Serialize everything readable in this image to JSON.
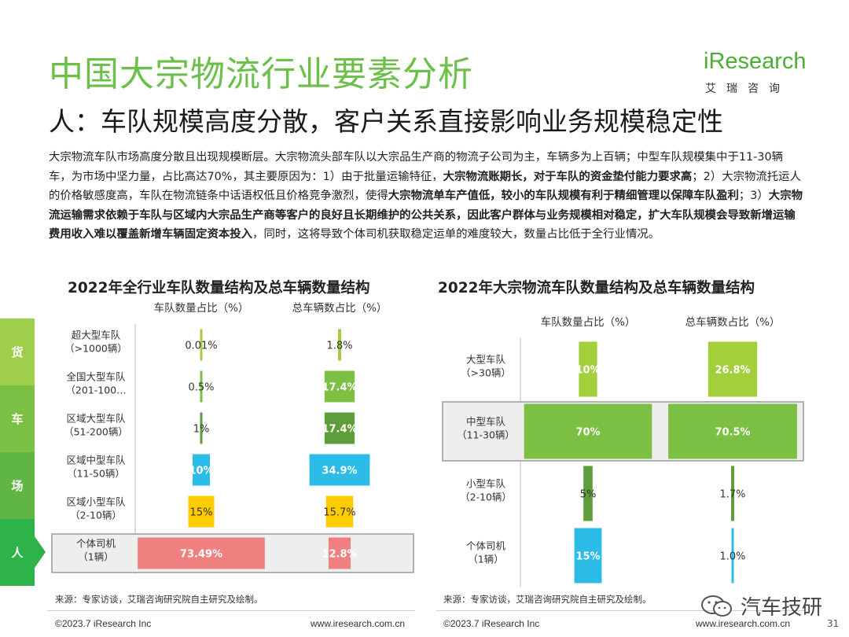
{
  "header": {
    "title": "中国大宗物流行业要素分析",
    "subtitle": "人：车队规模高度分散，客户关系直接影响业务规模稳定性",
    "logo_text": "iResearch",
    "logo_cn": "艾瑞咨询"
  },
  "intro": {
    "segments": [
      {
        "text": "大宗物流车队市场高度分散且出现规模断层。大宗物流头部车队以大宗品生产商的物流子公司为主，车辆多为上百辆；中型车队规模集中于11-30辆车，为市场中坚力量，占比高达70%，其主要原因为：1）由于批量运输特征，",
        "bold": false
      },
      {
        "text": "大宗物流账期长，对于车队的资金垫付能力要求高",
        "bold": true
      },
      {
        "text": "；2）大宗物流托运人的价格敏感度高，车队在物流链条中话语权低且价格竞争激烈，使得",
        "bold": false
      },
      {
        "text": "大宗物流单车产值低，较小的车队规模有利于精细管理以保障车队盈利",
        "bold": true
      },
      {
        "text": "；3）",
        "bold": false
      },
      {
        "text": "大宗物流运输需求依赖于车队与区域内大宗品生产商等客户的良好且长期维护的公共关系，因此客户群体与业务规模相对稳定，扩大车队规模会导致新增运输费用收入难以覆盖新增车辆固定资本投入",
        "bold": true
      },
      {
        "text": "，同时，这将导致个体司机获取稳定运单的难度较大，数量占比低于全行业情况。",
        "bold": false
      }
    ]
  },
  "sidebar": {
    "tabs": [
      {
        "label": "货",
        "color": "#9fcf4a"
      },
      {
        "label": "车",
        "color": "#7cc043"
      },
      {
        "label": "场",
        "color": "#5fb644"
      },
      {
        "label": "人",
        "color": "#2db34a"
      }
    ]
  },
  "chart_data": [
    {
      "type": "bar",
      "title": "2022年全行业车队数量结构及总车辆数量结构",
      "orientation": "horizontal-funnel",
      "categories": [
        "超大型车队\n（>1000辆）",
        "全国大型车队\n（201-100…",
        "区域大型车队\n（51-200辆）",
        "区域中型车队\n（11-50辆）",
        "区域小型车队\n（2-10辆）",
        "个体司机\n（1辆）"
      ],
      "series": [
        {
          "name": "车队数量占比（%）",
          "values": [
            0.01,
            0.5,
            1,
            10,
            15,
            73.49
          ],
          "labels": [
            "0.01%",
            "0.5%",
            "1%",
            "10%",
            "15%",
            "73.49%"
          ]
        },
        {
          "name": "总车辆数占比（%）",
          "values": [
            1.8,
            17.4,
            17.4,
            34.9,
            15.7,
            12.8
          ],
          "labels": [
            "1.8%",
            "17.4%",
            "17.4%",
            "34.9%",
            "15.7%",
            "12.8%"
          ]
        }
      ],
      "colors": [
        "#a3cf3a",
        "#7cc043",
        "#5e9e3a",
        "#2bbce8",
        "#ffcc00",
        "#f08080"
      ],
      "highlight_category": "个体司机\n（1辆）",
      "source": "来源：专家访谈，艾瑞咨询研究院自主研究及绘制。"
    },
    {
      "type": "bar",
      "title": "2022年大宗物流车队数量结构及总车辆数量结构",
      "orientation": "horizontal-funnel",
      "categories": [
        "大型车队\n（>30辆）",
        "中型车队\n（11-30辆）",
        "小型车队\n（2-10辆）",
        "个体司机\n（1辆）"
      ],
      "series": [
        {
          "name": "车队数量占比（%）",
          "values": [
            10,
            70,
            5,
            15
          ],
          "labels": [
            "10%",
            "70%",
            "5%",
            "15%"
          ]
        },
        {
          "name": "总车辆数占比（%）",
          "values": [
            26.8,
            70.5,
            1.7,
            1.0
          ],
          "labels": [
            "26.8%",
            "70.5%",
            "1.7%",
            "1.0%"
          ]
        }
      ],
      "colors": [
        "#a3cf3a",
        "#7cc043",
        "#5e9e3a",
        "#2bbce8"
      ],
      "highlight_category": "中型车队\n（11-30辆）",
      "source": "来源：专家访谈，艾瑞咨询研究院自主研究及绘制。"
    }
  ],
  "footer": {
    "left_copyright": "©2023.7 iResearch Inc",
    "left_url": "www.iresearch.com.cn",
    "right_copyright": "©2023.7 iResearch Inc",
    "right_url": "www.iresearch.com.cn",
    "page_number": "31"
  },
  "watermark": {
    "text": "汽车技研"
  }
}
